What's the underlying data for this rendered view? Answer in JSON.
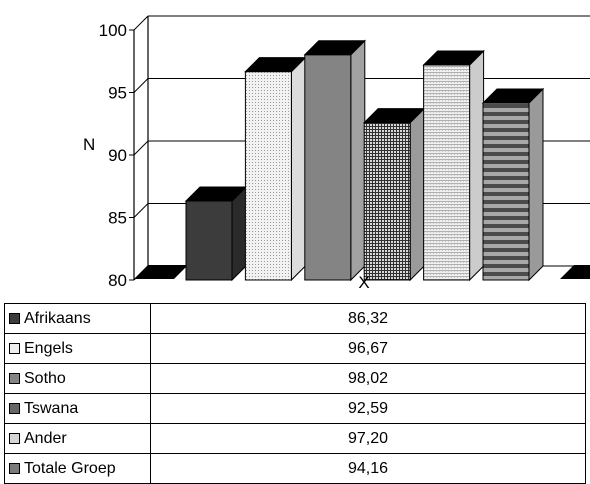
{
  "chart_data": {
    "type": "bar",
    "xlabel": "X",
    "ylabel": "N",
    "ylim": [
      80,
      100
    ],
    "yticks": [
      80,
      85,
      90,
      95,
      100
    ],
    "grid": true,
    "series": [
      {
        "name": "Afrikaans",
        "value": 86.32,
        "value_label": "86,32",
        "fill": "solid-dark"
      },
      {
        "name": "Engels",
        "value": 96.67,
        "value_label": "96,67",
        "fill": "light-dots"
      },
      {
        "name": "Sotho",
        "value": 98.02,
        "value_label": "98,02",
        "fill": "solid-grey"
      },
      {
        "name": "Tswana",
        "value": 92.59,
        "value_label": "92,59",
        "fill": "dense-grid"
      },
      {
        "name": "Ander",
        "value": 97.2,
        "value_label": "97,20",
        "fill": "light-lines"
      },
      {
        "name": "Totale Groep",
        "value": 94.16,
        "value_label": "94,16",
        "fill": "horizontal-stripes"
      }
    ]
  }
}
